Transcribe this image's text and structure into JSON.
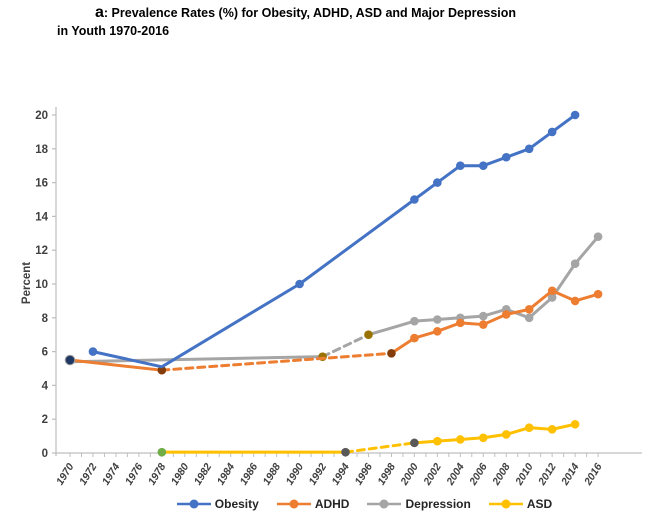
{
  "title": {
    "prefix": "a",
    "line1_rest": ": Prevalence Rates (%) for Obesity, ADHD, ASD and Major Depression",
    "line2": "in Youth 1970-2016"
  },
  "legend": {
    "items": [
      {
        "label": "Obesity",
        "color": "#4472C4"
      },
      {
        "label": "ADHD",
        "color": "#ED7D31"
      },
      {
        "label": "Depression",
        "color": "#A5A5A5"
      },
      {
        "label": "ASD",
        "color": "#FFC000"
      }
    ]
  },
  "chart_data": {
    "type": "line",
    "title": "a: Prevalence Rates (%) for Obesity, ADHD, ASD and Major Depression in Youth 1970-2016",
    "xlabel": "",
    "ylabel": "Percent",
    "ylim": [
      0,
      20
    ],
    "y_tick_step": 2,
    "grid": false,
    "legend_position": "bottom",
    "x_ticks": [
      1970,
      1972,
      1974,
      1976,
      1978,
      1980,
      1982,
      1984,
      1986,
      1988,
      1990,
      1992,
      1994,
      1996,
      1998,
      2000,
      2002,
      2004,
      2006,
      2008,
      2010,
      2012,
      2014,
      2016
    ],
    "series": [
      {
        "name": "Obesity",
        "color": "#4472C4",
        "segments": [
          {
            "style": "solid",
            "points": [
              [
                1972,
                6.0
              ],
              [
                1978,
                5.1
              ],
              [
                1990,
                10.0
              ],
              [
                2000,
                15.0
              ],
              [
                2002,
                16.0
              ],
              [
                2004,
                17.0
              ],
              [
                2006,
                17.0
              ],
              [
                2008,
                17.5
              ],
              [
                2010,
                18.0
              ],
              [
                2012,
                19.0
              ],
              [
                2014,
                20.0
              ]
            ]
          }
        ],
        "markers": [
          {
            "x": 1972,
            "y": 6.0
          },
          {
            "x": 1990,
            "y": 10.0
          },
          {
            "x": 2000,
            "y": 15.0
          },
          {
            "x": 2002,
            "y": 16.0
          },
          {
            "x": 2004,
            "y": 17.0
          },
          {
            "x": 2006,
            "y": 17.0
          },
          {
            "x": 2008,
            "y": 17.5
          },
          {
            "x": 2010,
            "y": 18.0
          },
          {
            "x": 2012,
            "y": 19.0
          },
          {
            "x": 2014,
            "y": 20.0
          }
        ]
      },
      {
        "name": "Depression",
        "color": "#A5A5A5",
        "segments": [
          {
            "style": "solid",
            "points": [
              [
                1970,
                5.4
              ],
              [
                1992,
                5.7
              ]
            ]
          },
          {
            "style": "dashed",
            "points": [
              [
                1992,
                5.7
              ],
              [
                1996,
                7.0
              ]
            ]
          },
          {
            "style": "solid",
            "points": [
              [
                1996,
                7.0
              ],
              [
                2000,
                7.8
              ],
              [
                2002,
                7.9
              ],
              [
                2004,
                8.0
              ],
              [
                2006,
                8.1
              ],
              [
                2008,
                8.5
              ],
              [
                2010,
                8.0
              ],
              [
                2012,
                9.2
              ],
              [
                2014,
                11.2
              ],
              [
                2016,
                12.8
              ]
            ]
          }
        ],
        "markers": [
          {
            "x": 1992,
            "y": 5.7,
            "color": "#997300"
          },
          {
            "x": 1996,
            "y": 7.0,
            "color": "#997300"
          },
          {
            "x": 2000,
            "y": 7.8
          },
          {
            "x": 2002,
            "y": 7.9
          },
          {
            "x": 2004,
            "y": 8.0
          },
          {
            "x": 2006,
            "y": 8.1
          },
          {
            "x": 2008,
            "y": 8.5
          },
          {
            "x": 2010,
            "y": 8.0
          },
          {
            "x": 2012,
            "y": 9.2
          },
          {
            "x": 2014,
            "y": 11.2
          },
          {
            "x": 2016,
            "y": 12.8
          }
        ]
      },
      {
        "name": "ADHD",
        "color": "#ED7D31",
        "segments": [
          {
            "style": "solid",
            "points": [
              [
                1970,
                5.5
              ],
              [
                1978,
                4.9
              ]
            ]
          },
          {
            "style": "dashed",
            "points": [
              [
                1978,
                4.9
              ],
              [
                1992,
                5.6
              ],
              [
                1998,
                5.9
              ]
            ]
          },
          {
            "style": "solid",
            "points": [
              [
                1998,
                5.9
              ],
              [
                2000,
                6.8
              ],
              [
                2002,
                7.2
              ],
              [
                2004,
                7.7
              ],
              [
                2006,
                7.6
              ],
              [
                2008,
                8.2
              ],
              [
                2010,
                8.5
              ],
              [
                2012,
                9.6
              ],
              [
                2014,
                9.0
              ],
              [
                2016,
                9.4
              ]
            ]
          }
        ],
        "markers": [
          {
            "x": 1978,
            "y": 4.9,
            "color": "#843C0B"
          },
          {
            "x": 1998,
            "y": 5.9,
            "color": "#843C0B"
          },
          {
            "x": 2000,
            "y": 6.8
          },
          {
            "x": 2002,
            "y": 7.2
          },
          {
            "x": 2004,
            "y": 7.7
          },
          {
            "x": 2006,
            "y": 7.6
          },
          {
            "x": 2008,
            "y": 8.2
          },
          {
            "x": 2010,
            "y": 8.5
          },
          {
            "x": 2012,
            "y": 9.6
          },
          {
            "x": 2014,
            "y": 9.0
          },
          {
            "x": 2016,
            "y": 9.4
          }
        ]
      },
      {
        "name": "ASD",
        "color": "#FFC000",
        "segments": [
          {
            "style": "solid",
            "points": [
              [
                1978,
                0.05
              ],
              [
                1994,
                0.05
              ]
            ]
          },
          {
            "style": "dashed",
            "points": [
              [
                1994,
                0.05
              ],
              [
                2000,
                0.6
              ]
            ]
          },
          {
            "style": "solid",
            "points": [
              [
                2000,
                0.6
              ],
              [
                2002,
                0.7
              ],
              [
                2004,
                0.8
              ],
              [
                2006,
                0.9
              ],
              [
                2008,
                1.1
              ],
              [
                2010,
                1.5
              ],
              [
                2012,
                1.4
              ],
              [
                2014,
                1.7
              ]
            ]
          }
        ],
        "markers": [
          {
            "x": 1978,
            "y": 0.05,
            "color": "#70AD47"
          },
          {
            "x": 1994,
            "y": 0.05,
            "color": "#595959"
          },
          {
            "x": 2000,
            "y": 0.6,
            "color": "#595959"
          },
          {
            "x": 2002,
            "y": 0.7
          },
          {
            "x": 2004,
            "y": 0.8
          },
          {
            "x": 2006,
            "y": 0.9
          },
          {
            "x": 2008,
            "y": 1.1
          },
          {
            "x": 2010,
            "y": 1.5
          },
          {
            "x": 2012,
            "y": 1.4
          },
          {
            "x": 2014,
            "y": 1.7
          }
        ]
      }
    ],
    "extra_markers": [
      {
        "x": 1970,
        "y": 5.5,
        "color": "#1F3864",
        "note": "overlapping 1970 value for Obesity/ADHD/Depression"
      }
    ]
  },
  "axis_style": {
    "axis_color": "#BFBFBF",
    "tick_label_color": "#404040"
  }
}
